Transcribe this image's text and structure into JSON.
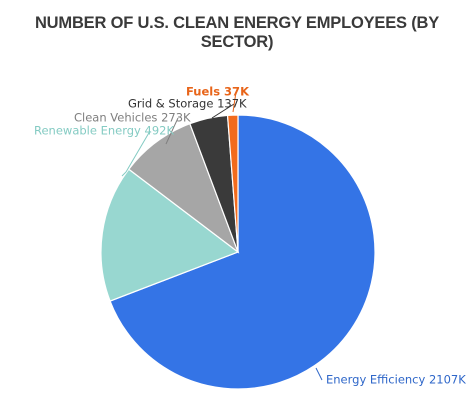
{
  "chart_data": {
    "type": "pie",
    "title": "NUMBER OF U.S. CLEAN ENERGY EMPLOYEES (BY SECTOR)",
    "unit": "K",
    "slices": [
      {
        "name": "Energy Efficiency",
        "value": 2107,
        "label": "Energy Efficiency 2107K",
        "color": "#3474e6",
        "label_color": "#2f67c9"
      },
      {
        "name": "Renewable Energy",
        "value": 492,
        "label": "Renewable Energy 492K",
        "color": "#98d7d0",
        "label_color": "#84cbc3"
      },
      {
        "name": "Clean Vehicles",
        "value": 273,
        "label": "Clean Vehicles 273K",
        "color": "#a6a6a6",
        "label_color": "#7f7f7f"
      },
      {
        "name": "Grid & Storage",
        "value": 137,
        "label": "Grid & Storage 137K",
        "color": "#3a3a3a",
        "label_color": "#333333"
      },
      {
        "name": "Fuels",
        "value": 37,
        "label": "Fuels 37K",
        "color": "#f26b1d",
        "label_color": "#e8651a"
      }
    ],
    "legend": "none"
  }
}
